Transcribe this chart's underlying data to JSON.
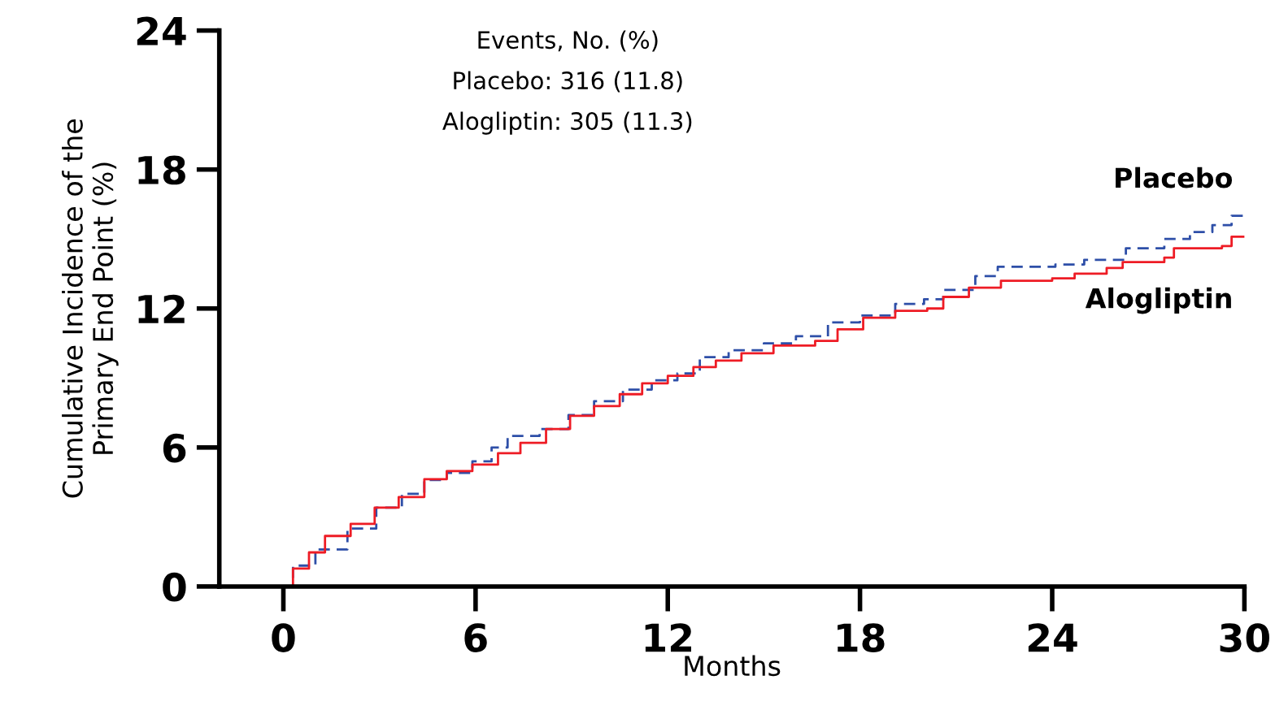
{
  "chart_data": {
    "type": "step",
    "xlabel": "Months",
    "ylabel": "Cumulative Incidence of the\nPrimary End Point (%)",
    "annotations": [
      "Events, No. (%)",
      "Placebo: 316 (11.8)",
      "Alogliptin: 305 (11.3)"
    ],
    "xlim": [
      -2,
      30
    ],
    "xticks": [
      0,
      6,
      12,
      18,
      24,
      30
    ],
    "ylim": [
      0,
      24
    ],
    "yticks": [
      0,
      6,
      12,
      18,
      24
    ],
    "grid": false,
    "legend": false,
    "series": [
      {
        "name": "Placebo",
        "color": "#2e4fa8",
        "line_style": "dashed",
        "x": [
          0,
          0.3,
          1.0,
          2.0,
          2.9,
          3.7,
          4.4,
          5.1,
          5.9,
          6.5,
          7.0,
          8.0,
          8.9,
          9.7,
          10.6,
          11.5,
          12.3,
          13.0,
          13.9,
          15.0,
          16.0,
          17.0,
          18.0,
          19.1,
          20.0,
          20.6,
          21.6,
          22.3,
          24.1,
          25.0,
          26.3,
          27.5,
          28.3,
          29.0,
          29.6,
          30
        ],
        "values": [
          0,
          0.9,
          1.6,
          2.5,
          3.4,
          4.0,
          4.6,
          4.9,
          5.4,
          6.0,
          6.5,
          6.8,
          7.4,
          8.0,
          8.5,
          8.9,
          9.2,
          9.9,
          10.2,
          10.5,
          10.8,
          11.4,
          11.7,
          12.2,
          12.4,
          12.8,
          13.4,
          13.8,
          13.9,
          14.1,
          14.6,
          15.0,
          15.3,
          15.6,
          16.0,
          16.0
        ]
      },
      {
        "name": "Alogliptin",
        "color": "#ee1c25",
        "line_style": "solid",
        "x": [
          0,
          0.3,
          0.8,
          1.3,
          2.1,
          2.85,
          3.6,
          4.4,
          5.1,
          5.9,
          6.7,
          7.4,
          8.2,
          8.95,
          9.7,
          10.5,
          11.2,
          12.0,
          12.8,
          13.5,
          14.3,
          15.3,
          16.6,
          17.3,
          18.1,
          19.1,
          20.1,
          20.6,
          21.4,
          22.4,
          24.0,
          24.7,
          25.7,
          26.2,
          27.5,
          27.8,
          29.3,
          29.6,
          30
        ],
        "values": [
          0,
          0.77,
          1.47,
          2.18,
          2.7,
          3.4,
          3.86,
          4.63,
          4.98,
          5.26,
          5.75,
          6.2,
          6.8,
          7.37,
          7.79,
          8.3,
          8.77,
          9.09,
          9.47,
          9.75,
          10.07,
          10.4,
          10.6,
          11.1,
          11.6,
          11.9,
          12.0,
          12.5,
          12.9,
          13.2,
          13.3,
          13.5,
          13.75,
          14.0,
          14.2,
          14.6,
          14.7,
          15.1,
          15.1
        ]
      }
    ]
  }
}
